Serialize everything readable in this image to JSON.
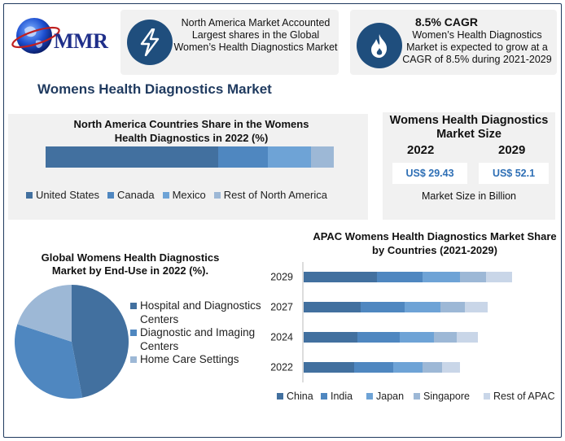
{
  "brand": {
    "logo_text": "MMR"
  },
  "colors": {
    "series": [
      "#42709f",
      "#4f87c0",
      "#6ea3d6",
      "#9db8d6",
      "#c9d6e8"
    ],
    "icon_bg": "#1f4e7d",
    "title": "#1f3a5f",
    "value": "#2e6fb5"
  },
  "card_na": {
    "icon": "lightning-icon",
    "text": "North America Market Accounted Largest shares in the Global Women’s Health Diagnostics Market"
  },
  "card_cagr": {
    "icon": "flame-icon",
    "title": "8.5% CAGR",
    "text": "Women’s Health Diagnostics Market is expected to grow at a CAGR of 8.5% during 2021-2029"
  },
  "page_title": "Womens Health Diagnostics Market",
  "market_size": {
    "title": "Womens Health Diagnostics Market Size",
    "year_start": "2022",
    "year_end": "2029",
    "value_start": "US$ 29.43",
    "value_end": "US$ 52.1",
    "caption": "Market Size in Billion"
  },
  "chart_data": [
    {
      "type": "bar",
      "orientation": "horizontal-stacked",
      "title": "North America Countries Share in the Womens Health Diagnostics in 2022 (%)",
      "categories": [
        "2022"
      ],
      "series": [
        {
          "name": "United States",
          "values": [
            60
          ]
        },
        {
          "name": "Canada",
          "values": [
            17
          ]
        },
        {
          "name": "Mexico",
          "values": [
            15
          ]
        },
        {
          "name": "Rest of North America",
          "values": [
            8
          ]
        }
      ],
      "legend_position": "bottom"
    },
    {
      "type": "pie",
      "title": "Global Womens Health Diagnostics Market by End-Use in 2022 (%).",
      "labels": [
        "Hospital and Diagnostics Centers",
        "Diagnostic and Imaging Centers",
        "Home Care Settings"
      ],
      "values": [
        47,
        33,
        20
      ],
      "legend_position": "right"
    },
    {
      "type": "bar",
      "orientation": "horizontal-stacked",
      "title": "APAC Womens Health Diagnostics Market Share by Countries (2021-2029)",
      "categories": [
        "2029",
        "2027",
        "2024",
        "2022"
      ],
      "series": [
        {
          "name": "China",
          "values": [
            90,
            70,
            66,
            62
          ]
        },
        {
          "name": "India",
          "values": [
            56,
            54,
            52,
            48
          ]
        },
        {
          "name": "Japan",
          "values": [
            46,
            44,
            42,
            36
          ]
        },
        {
          "name": "Singapore",
          "values": [
            32,
            30,
            28,
            24
          ]
        },
        {
          "name": "Rest of APAC",
          "values": [
            32,
            28,
            26,
            22
          ]
        }
      ],
      "legend_position": "bottom"
    }
  ]
}
